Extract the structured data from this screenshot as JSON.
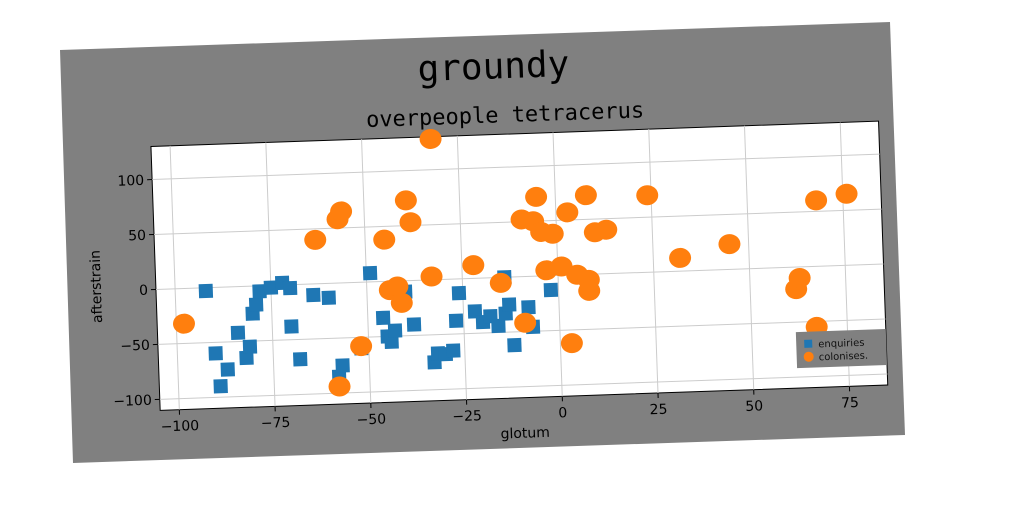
{
  "chart_data": {
    "type": "scatter",
    "title": "groundy",
    "subtitle": "overpeople tetracerus",
    "xlabel": "glotum",
    "ylabel": "afterstrain",
    "xlim": [
      -105,
      85
    ],
    "ylim": [
      -110,
      130
    ],
    "xticks": [
      -100,
      -75,
      -50,
      -25,
      0,
      25,
      50,
      75
    ],
    "yticks": [
      -100,
      -50,
      0,
      50,
      100
    ],
    "grid": true,
    "legend_position": "bottom-right",
    "colors": {
      "figure_background": "#808080",
      "axes_background": "#ffffff",
      "grid": "#cccccc",
      "enquiries": "#1f77b4",
      "colonises": "#ff7f0e"
    },
    "series": [
      {
        "name": "enquiries",
        "marker": "square",
        "points": [
          [
            -92,
            -3
          ],
          [
            -90,
            -60
          ],
          [
            -89,
            -90
          ],
          [
            -87,
            -75
          ],
          [
            -84,
            -42
          ],
          [
            -82,
            -65
          ],
          [
            -81,
            -55
          ],
          [
            -80,
            -25
          ],
          [
            -79,
            -17
          ],
          [
            -78,
            -5
          ],
          [
            -75,
            -2
          ],
          [
            -72,
            2
          ],
          [
            -70,
            -3
          ],
          [
            -70,
            -38
          ],
          [
            -68,
            -68
          ],
          [
            -64,
            -10
          ],
          [
            -60,
            -13
          ],
          [
            -58,
            -85
          ],
          [
            -57,
            -75
          ],
          [
            -52,
            -60
          ],
          [
            -49,
            8
          ],
          [
            -46,
            -33
          ],
          [
            -45,
            -50
          ],
          [
            -44,
            -55
          ],
          [
            -43,
            -45
          ],
          [
            -40,
            -10
          ],
          [
            -38,
            -40
          ],
          [
            -33,
            -75
          ],
          [
            -32,
            -67
          ],
          [
            -30,
            -68
          ],
          [
            -28,
            -65
          ],
          [
            -27,
            -38
          ],
          [
            -26,
            -13
          ],
          [
            -22,
            -30
          ],
          [
            -20,
            -40
          ],
          [
            -18,
            -35
          ],
          [
            -16,
            -44
          ],
          [
            -14,
            -33
          ],
          [
            -13,
            -25
          ],
          [
            -14,
            0
          ],
          [
            -12,
            -62
          ],
          [
            -8,
            -28
          ],
          [
            -7,
            -46
          ],
          [
            -2,
            -13
          ]
        ]
      },
      {
        "name": "colonises.",
        "marker": "circle",
        "points": [
          [
            -98,
            -32
          ],
          [
            -63,
            40
          ],
          [
            -57,
            58
          ],
          [
            -56,
            65
          ],
          [
            -58,
            -94
          ],
          [
            -52,
            -58
          ],
          [
            -45,
            38
          ],
          [
            -44,
            -8
          ],
          [
            -42,
            -5
          ],
          [
            -41,
            -20
          ],
          [
            -39,
            73
          ],
          [
            -38,
            53
          ],
          [
            -33,
            3
          ],
          [
            -32,
            128
          ],
          [
            -22,
            12
          ],
          [
            -15,
            -5
          ],
          [
            -9,
            52
          ],
          [
            -9,
            -42
          ],
          [
            -6,
            50
          ],
          [
            -5,
            72
          ],
          [
            -4,
            40
          ],
          [
            -3,
            5
          ],
          [
            -1,
            38
          ],
          [
            1,
            8
          ],
          [
            3,
            57
          ],
          [
            3,
            -62
          ],
          [
            5,
            0
          ],
          [
            8,
            72
          ],
          [
            8,
            -5
          ],
          [
            8,
            -15
          ],
          [
            10,
            38
          ],
          [
            13,
            40
          ],
          [
            24,
            70
          ],
          [
            32,
            12
          ],
          [
            45,
            23
          ],
          [
            62,
            -20
          ],
          [
            63,
            -10
          ],
          [
            67,
            -55
          ],
          [
            68,
            60
          ],
          [
            76,
            65
          ]
        ]
      }
    ]
  }
}
